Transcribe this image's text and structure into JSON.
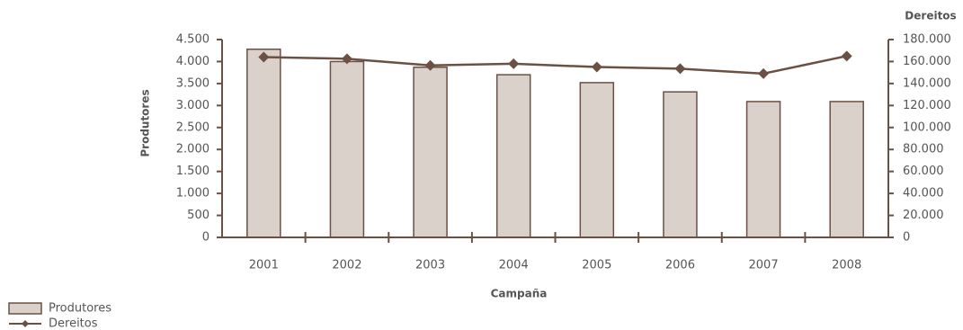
{
  "chart_data": {
    "type": "bar",
    "x_label": "Campaña",
    "y_label": "Produtores",
    "y2_label": "Dereitos",
    "categories": [
      "2001",
      "2002",
      "2003",
      "2004",
      "2005",
      "2006",
      "2007",
      "2008"
    ],
    "series": [
      {
        "name": "Produtores",
        "color": "#d9d1ca",
        "values": [
          4280,
          4000,
          3870,
          3700,
          3520,
          3310,
          3090,
          3090
        ]
      },
      {
        "name": "Dereitos",
        "color": "#6b5044",
        "axis": "y2",
        "values": [
          164000,
          162500,
          156500,
          158000,
          155000,
          153500,
          149000,
          165000
        ]
      }
    ],
    "ylim": [
      0,
      4500
    ],
    "yticks": [
      0,
      500,
      {
        "value": 1000,
        "label": "1.000"
      },
      {
        "value": 1500,
        "label": "1.500"
      },
      {
        "value": 2000,
        "label": "2.000"
      },
      {
        "value": 2500,
        "label": "2.500"
      },
      {
        "value": 3000,
        "label": "3.000"
      },
      {
        "value": 3500,
        "label": "3.500"
      },
      {
        "value": 4000,
        "label": "4.000"
      },
      {
        "value": 4500,
        "label": "4.500"
      }
    ],
    "y2lim": [
      0,
      180000
    ],
    "y2ticks": [
      0,
      {
        "value": 20000,
        "label": "20.000"
      },
      {
        "value": 40000,
        "label": "40.000"
      },
      {
        "value": 60000,
        "label": "60.000"
      },
      {
        "value": 80000,
        "label": "80.000"
      },
      {
        "value": 100000,
        "label": "100.000"
      },
      {
        "value": 120000,
        "label": "120.000"
      },
      {
        "value": 140000,
        "label": "140.000"
      },
      {
        "value": 160000,
        "label": "160.000"
      },
      {
        "value": 180000,
        "label": "180.000"
      }
    ]
  }
}
